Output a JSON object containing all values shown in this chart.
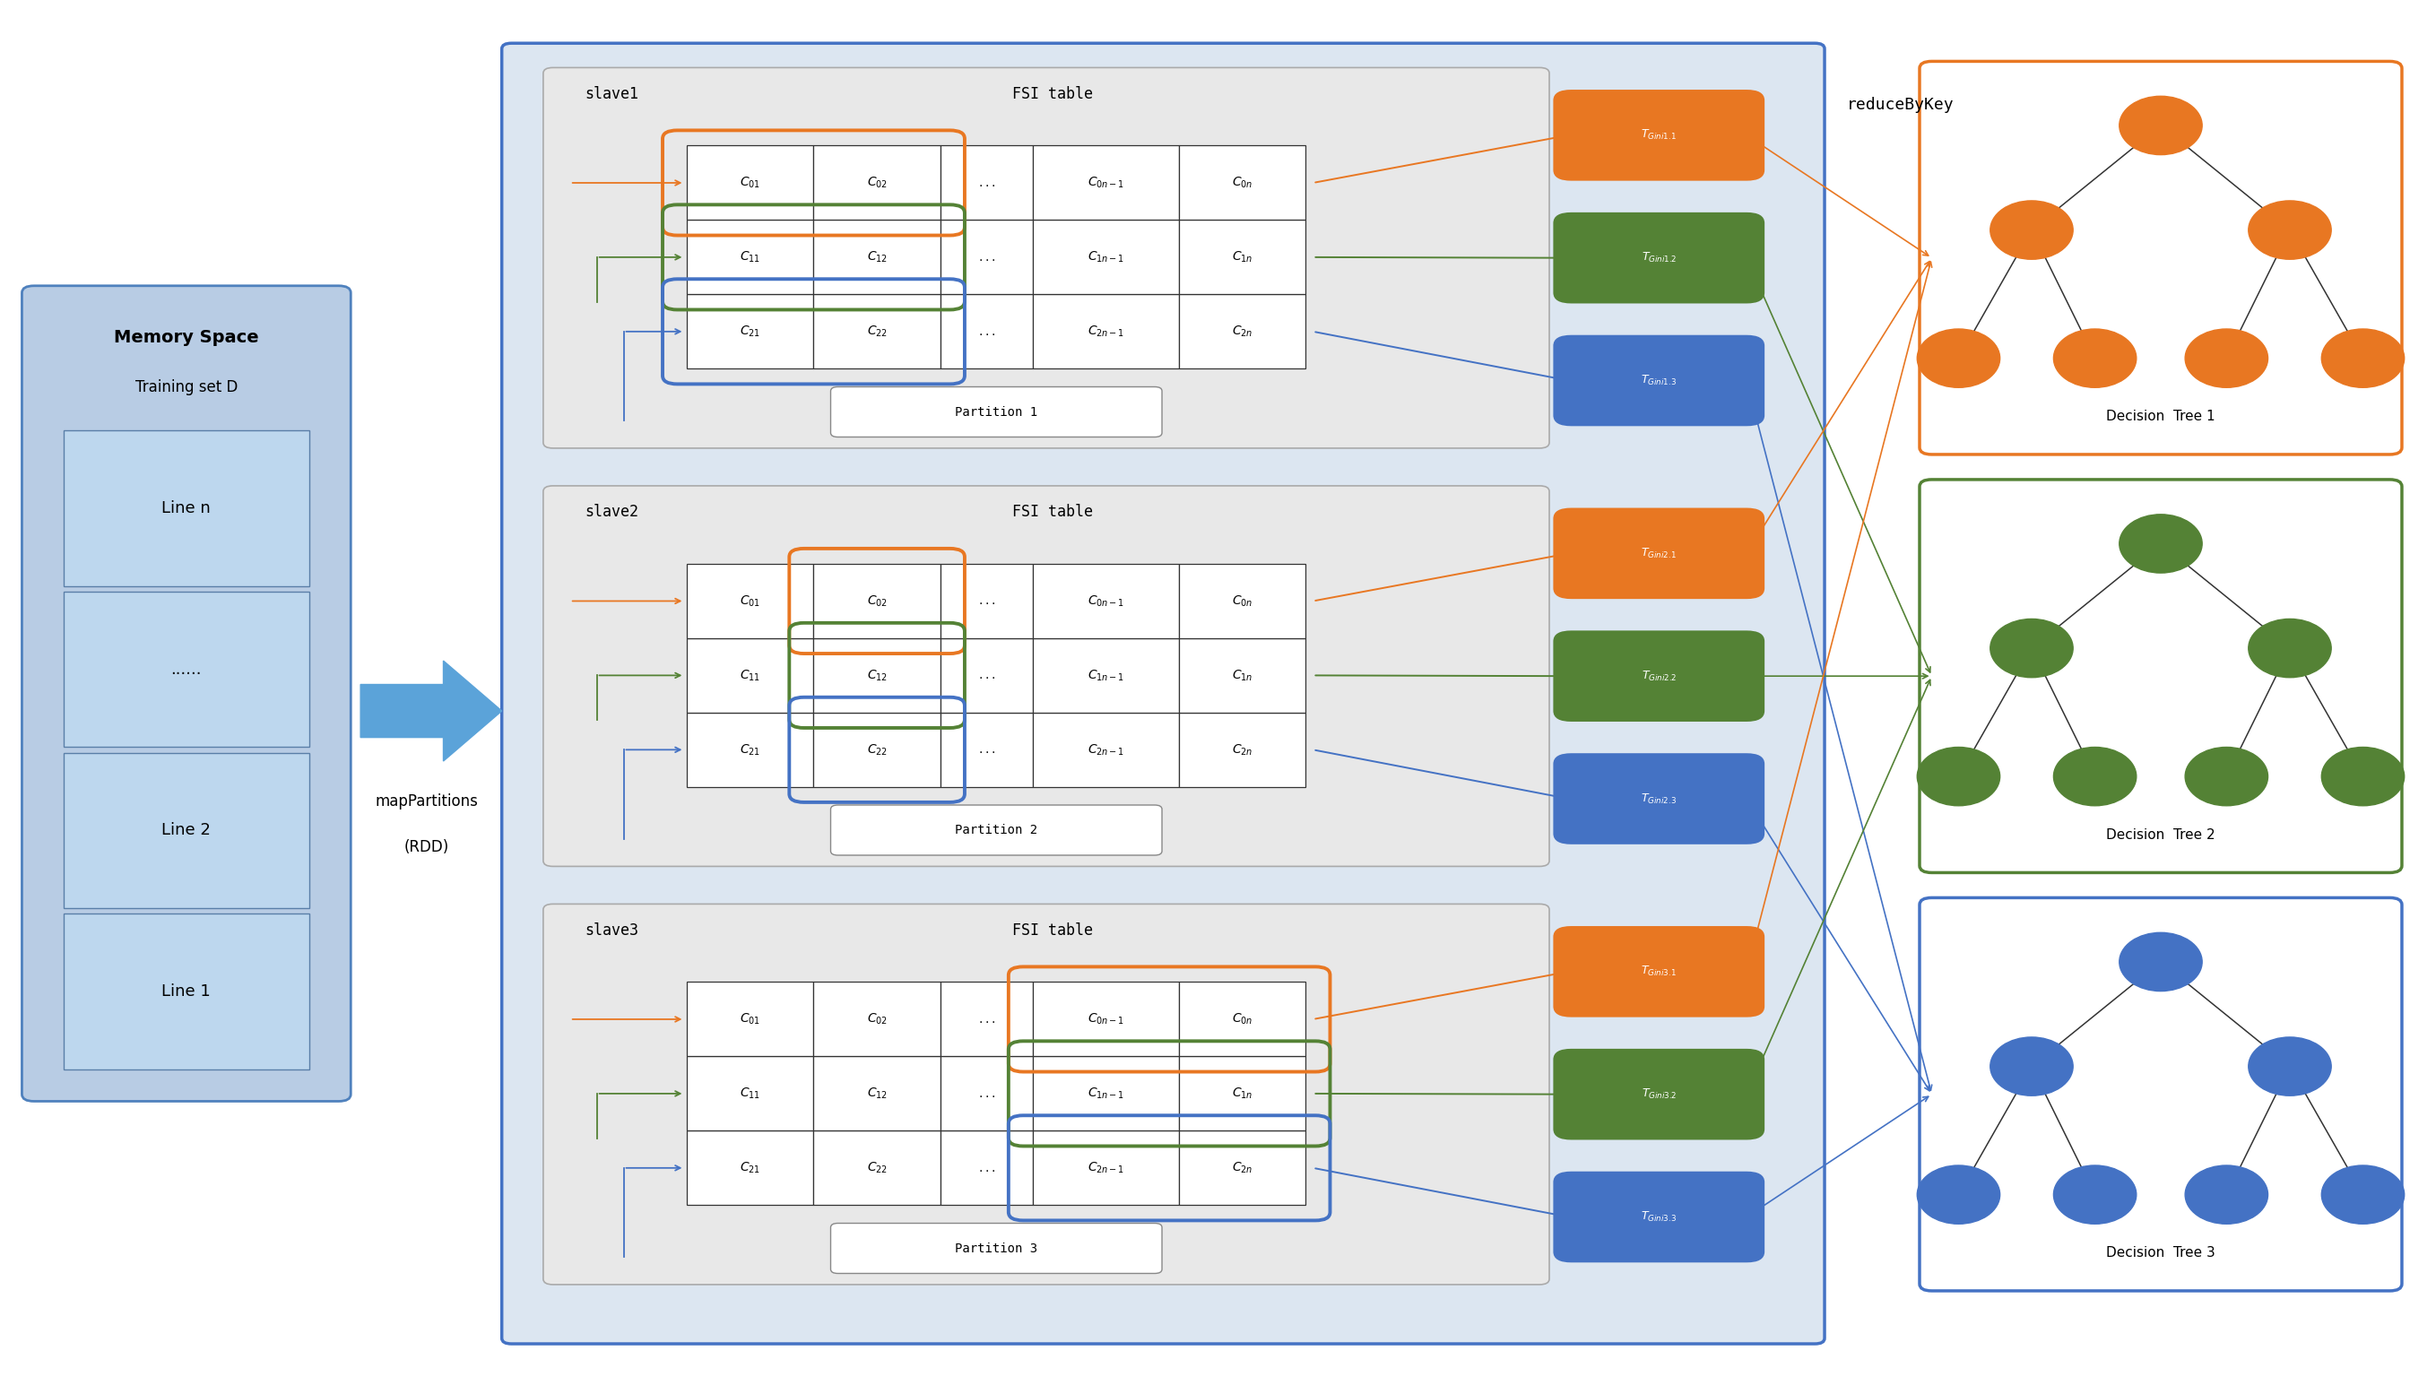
{
  "bg_color": "#ffffff",
  "orange": "#e87722",
  "green": "#548235",
  "blue": "#4472c4",
  "arrow_blue": "#5ba3d9",
  "mem_outer_fc": "#b8cce4",
  "mem_outer_ec": "#4f81bd",
  "mem_line_fc": "#bdd7ee",
  "mem_line_ec": "#5a7fa8",
  "main_fc": "#dce6f1",
  "main_ec": "#4472c4",
  "slave_fc": "#e8e8e8",
  "slave_ec": "#aaaaaa",
  "cell_fc": "#ffffff",
  "cell_ec": "#333333",
  "part_fc": "#ffffff",
  "part_ec": "#888888",
  "tree_fc": "#ffffff",
  "memory_title": "Memory Space",
  "memory_subtitle": "Training set D",
  "memory_lines": [
    "Line 1",
    "Line 2",
    "......",
    "Line n"
  ],
  "fsi_label": "FSI table",
  "slave_labels": [
    "slave1",
    "slave2",
    "slave3"
  ],
  "partition_labels": [
    "Partition 1",
    "Partition 2",
    "Partition 3"
  ],
  "cell_rows": [
    [
      "C_{01}",
      "C_{02}",
      "...",
      "C_{0n-1}",
      "C_{0n}"
    ],
    [
      "C_{11}",
      "C_{12}",
      "...",
      "C_{1n-1}",
      "C_{1n}"
    ],
    [
      "C_{21}",
      "C_{22}",
      "...",
      "C_{2n-1}",
      "C_{2n}"
    ]
  ],
  "gini_labels": [
    [
      "T_{Gini1.1}",
      "T_{Gini1.2}",
      "T_{Gini1.3}"
    ],
    [
      "T_{Gini2.1}",
      "T_{Gini2.2}",
      "T_{Gini2.3}"
    ],
    [
      "T_{Gini3.1}",
      "T_{Gini3.2}",
      "T_{Gini3.3}"
    ]
  ],
  "tree_labels": [
    "Decision  Tree 1",
    "Decision  Tree 2",
    "Decision  Tree 3"
  ],
  "tree_colors": [
    "#e87722",
    "#548235",
    "#4472c4"
  ],
  "reduce_label": "reduceByKey",
  "map_label1": "mapPartitions",
  "map_label2": "(RDD)"
}
